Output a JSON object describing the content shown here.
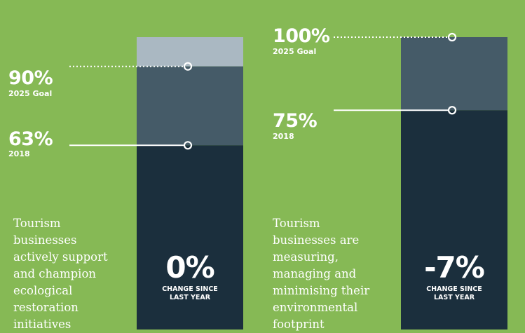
{
  "chart_data": [
    {
      "type": "bar",
      "description": "Tourism businesses actively support and champion ecological restoration initiatives",
      "values": {
        "2018": 63,
        "2025 Goal": 90
      },
      "value_labels": {
        "2018": "63%",
        "2025 Goal": "90%"
      },
      "label_2018": "2018",
      "label_goal": "2025 Goal",
      "change_value": "0%",
      "change_label": "CHANGE SINCE\nLAST YEAR",
      "colors": {
        "bar": "#1b2f3d",
        "goal": "#455b68",
        "top": "#aab8c2"
      }
    },
    {
      "type": "bar",
      "description": "Tourism businesses are measuring, managing and minimising their environmental footprint",
      "values": {
        "2018": 75,
        "2025 Goal": 100
      },
      "value_labels": {
        "2018": "75%",
        "2025 Goal": "100%"
      },
      "label_2018": "2018",
      "label_goal": "2025 Goal",
      "change_value": "-7%",
      "change_label": "CHANGE SINCE\nLAST YEAR",
      "colors": {
        "bar": "#1b2f3d",
        "goal": "#455b68",
        "top": "#aab8c2"
      }
    }
  ],
  "colors": {
    "background": "#86b955",
    "marker": "#ffffff"
  }
}
